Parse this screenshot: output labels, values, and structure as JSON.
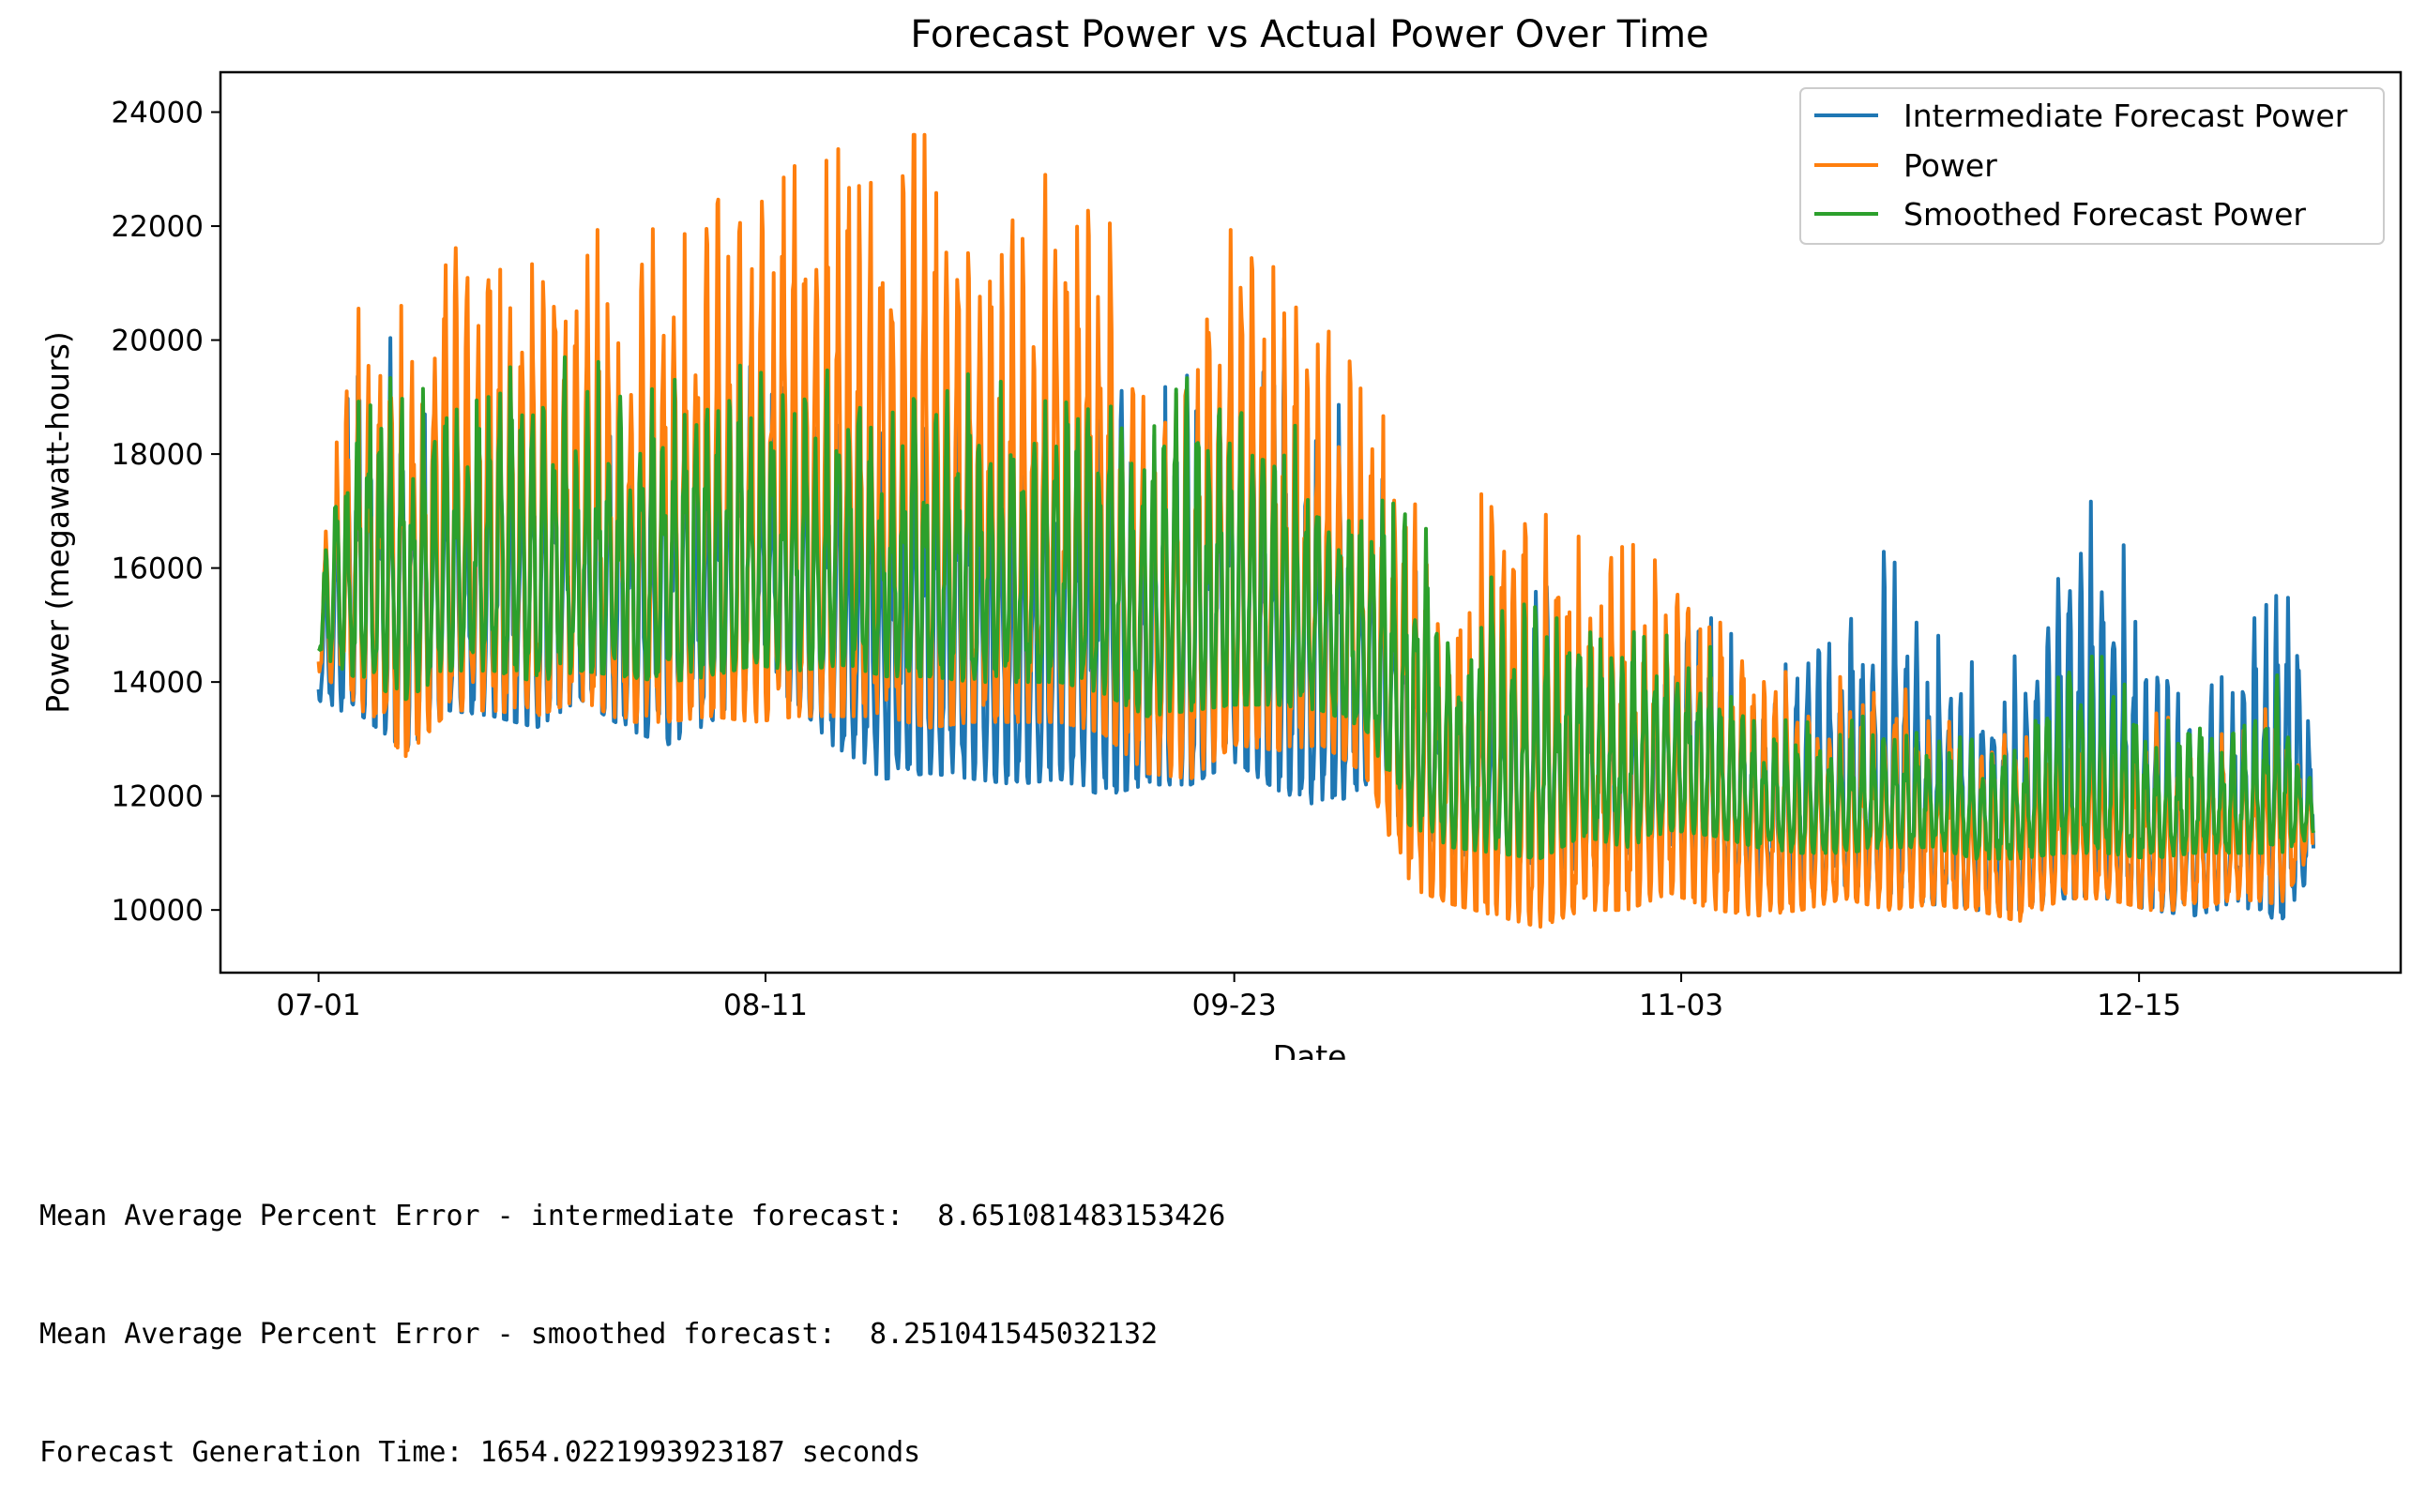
{
  "chart_data": {
    "type": "line",
    "title": "Forecast Power vs Actual Power Over Time",
    "xlabel": "Date",
    "ylabel": "Power (megawatt-hours)",
    "x_tick_labels": [
      "07-01",
      "08-11",
      "09-23",
      "11-03",
      "12-15"
    ],
    "x_tick_days": [
      0,
      41,
      84,
      125,
      167
    ],
    "xlim_days": [
      -9,
      191
    ],
    "y_ticks": [
      10000,
      12000,
      14000,
      16000,
      18000,
      20000,
      22000,
      24000
    ],
    "ylim": [
      8900,
      24700
    ],
    "grid": false,
    "legend_position": "top-right",
    "x_start_date": "07-01",
    "sample_days": [
      0,
      4,
      8,
      12,
      16,
      20,
      24,
      28,
      32,
      36,
      40,
      44,
      48,
      52,
      56,
      60,
      64,
      68,
      72,
      76,
      80,
      84,
      88,
      92,
      96,
      100,
      104,
      108,
      112,
      116,
      120,
      124,
      128,
      132,
      136,
      140,
      144,
      148,
      152,
      156,
      160,
      164,
      168,
      172,
      176,
      180,
      183
    ],
    "series": [
      {
        "name": "Intermediate Forecast Power",
        "color": "#1f77b4",
        "envelope_low": [
          13600,
          13400,
          12800,
          13500,
          13400,
          13200,
          13700,
          13200,
          12900,
          13300,
          14000,
          13600,
          12700,
          12300,
          12400,
          12300,
          12200,
          12300,
          12000,
          12200,
          12200,
          12600,
          12100,
          11800,
          12100,
          11500,
          11000,
          10900,
          10800,
          10700,
          11000,
          11000,
          10700,
          10500,
          10300,
          10400,
          10300,
          10100,
          10000,
          10000,
          10200,
          10200,
          10000,
          9900,
          10100,
          9800,
          10700
        ],
        "envelope_high": [
          16000,
          20900,
          20100,
          20000,
          19500,
          19500,
          20000,
          19200,
          19800,
          19000,
          19600,
          19800,
          19500,
          18400,
          19300,
          19200,
          18500,
          19200,
          19400,
          18700,
          20300,
          20000,
          20200,
          19300,
          18200,
          16900,
          14200,
          14500,
          16300,
          14500,
          14000,
          15400,
          15800,
          14000,
          14500,
          15300,
          16400,
          14900,
          14300,
          14800,
          16700,
          17800,
          14800,
          13700,
          14700,
          16800,
          13400
        ]
      },
      {
        "name": "Power",
        "color": "#ff7f0e",
        "envelope_low": [
          14200,
          13500,
          12700,
          13500,
          13500,
          13400,
          13700,
          13300,
          13300,
          13400,
          13300,
          13400,
          13400,
          13400,
          13200,
          13300,
          13300,
          13300,
          13100,
          12400,
          12300,
          12900,
          12800,
          12900,
          12400,
          10400,
          10100,
          9900,
          9700,
          10000,
          10000,
          10300,
          10000,
          9900,
          10000,
          10200,
          10000,
          10100,
          10000,
          9800,
          10200,
          10200,
          10000,
          10000,
          10200,
          10100,
          11100
        ],
        "envelope_high": [
          16500,
          21300,
          20600,
          22200,
          22600,
          21800,
          22500,
          22200,
          21900,
          22800,
          23100,
          23900,
          23300,
          23600,
          23600,
          22700,
          22300,
          23200,
          22500,
          19400,
          21200,
          22000,
          21200,
          20300,
          19400,
          18100,
          15100,
          18400,
          17200,
          17300,
          17300,
          15800,
          16000,
          14500,
          14000,
          14100,
          14200,
          13900,
          13200,
          13400,
          13400,
          13500,
          13500,
          13400,
          13200,
          13700,
          12200
        ]
      },
      {
        "name": "Smoothed Forecast Power",
        "color": "#2ca02c",
        "envelope_low": [
          14500,
          14000,
          13700,
          14200,
          14200,
          14000,
          14200,
          14100,
          14000,
          14100,
          14300,
          14200,
          14300,
          14100,
          14100,
          14000,
          14000,
          14000,
          13800,
          13400,
          13500,
          13600,
          13600,
          13500,
          13200,
          11500,
          11100,
          11000,
          10900,
          11300,
          11100,
          11400,
          11300,
          11100,
          11000,
          11000,
          11100,
          11100,
          10900,
          10900,
          11000,
          11000,
          10900,
          11000,
          11000,
          11000,
          11300
        ],
        "envelope_high": [
          16200,
          20200,
          19200,
          19400,
          20200,
          19700,
          19700,
          19500,
          19500,
          19500,
          19700,
          19700,
          19400,
          19200,
          19400,
          19400,
          19200,
          19300,
          19300,
          18600,
          19400,
          19200,
          18800,
          18100,
          17400,
          17600,
          15300,
          15900,
          15500,
          15300,
          15000,
          14800,
          14600,
          13200,
          13400,
          13400,
          13400,
          13200,
          13000,
          13200,
          14800,
          14500,
          13200,
          13500,
          13200,
          14200,
          12400
        ]
      }
    ]
  },
  "output_text": [
    "Mean Average Percent Error - intermediate forecast:  8.651081483153426",
    "Mean Average Percent Error - smoothed forecast:  8.251041545032132",
    "Forecast Generation Time: 1654.0221993923187 seconds"
  ]
}
